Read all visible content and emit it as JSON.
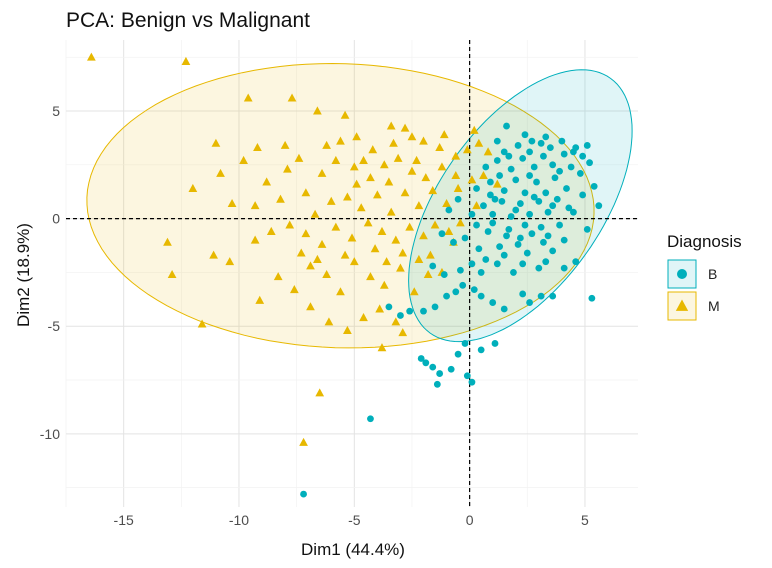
{
  "chart_data": {
    "type": "scatter",
    "title": "PCA: Benign vs Malignant",
    "xlabel": "Dim1 (44.4%)",
    "ylabel": "Dim2 (18.9%)",
    "xlim": [
      -17.5,
      7.3
    ],
    "ylim": [
      -13.4,
      8.3
    ],
    "xticks": [
      -15,
      -10,
      -5,
      0,
      5
    ],
    "yticks": [
      5,
      0,
      -5,
      -10
    ],
    "grid": true,
    "reference_lines": {
      "x": 0,
      "y": 0,
      "style": "dashed"
    },
    "legend": {
      "title": "Diagnosis",
      "placement": "right"
    },
    "series": [
      {
        "name": "B",
        "marker": "circle",
        "color": "#00AFBB",
        "ellipse": {
          "center": [
            2.2,
            0.6
          ],
          "semi_major": 7.1,
          "semi_minor": 3.6,
          "angle_deg": 58
        },
        "points": [
          [
            -7.2,
            -12.8
          ],
          [
            -4.3,
            -9.3
          ],
          [
            -1.4,
            -7.7
          ],
          [
            -1.3,
            -7.2
          ],
          [
            -1.9,
            -6.7
          ],
          [
            -1.6,
            -6.9
          ],
          [
            -2.1,
            -6.5
          ],
          [
            -0.1,
            -7.3
          ],
          [
            0.1,
            -7.6
          ],
          [
            -0.8,
            -7.0
          ],
          [
            -0.5,
            -6.3
          ],
          [
            -0.2,
            -5.8
          ],
          [
            0.5,
            -6.1
          ],
          [
            1.1,
            -5.8
          ],
          [
            -3.5,
            -4.1
          ],
          [
            -3.0,
            -4.5
          ],
          [
            -2.6,
            -4.3
          ],
          [
            -2.0,
            -4.3
          ],
          [
            -1.5,
            -4.1
          ],
          [
            -1.0,
            -3.6
          ],
          [
            -0.6,
            -3.4
          ],
          [
            -0.3,
            -3.1
          ],
          [
            0.2,
            -3.3
          ],
          [
            0.5,
            -3.6
          ],
          [
            1.0,
            -3.9
          ],
          [
            1.5,
            -4.2
          ],
          [
            2.3,
            -3.5
          ],
          [
            2.6,
            -3.9
          ],
          [
            3.1,
            -3.6
          ],
          [
            3.6,
            -3.6
          ],
          [
            4.1,
            -2.3
          ],
          [
            4.6,
            -2.0
          ],
          [
            5.3,
            -3.7
          ],
          [
            -1.6,
            -2.2
          ],
          [
            -1.1,
            -2.6
          ],
          [
            -0.4,
            -2.4
          ],
          [
            0.1,
            -2.1
          ],
          [
            0.5,
            -2.5
          ],
          [
            1.2,
            -2.1
          ],
          [
            1.9,
            -2.5
          ],
          [
            2.3,
            -2.1
          ],
          [
            3.0,
            -2.3
          ],
          [
            3.6,
            -1.5
          ],
          [
            4.1,
            -1.0
          ],
          [
            5.1,
            -0.5
          ],
          [
            -1.2,
            -0.7
          ],
          [
            -0.7,
            -1.1
          ],
          [
            -0.2,
            -0.9
          ],
          [
            0.4,
            -1.4
          ],
          [
            0.8,
            -0.6
          ],
          [
            1.3,
            -1.3
          ],
          [
            1.7,
            -0.5
          ],
          [
            2.1,
            -1.2
          ],
          [
            2.7,
            -0.7
          ],
          [
            3.2,
            -1.1
          ],
          [
            3.9,
            -0.3
          ],
          [
            4.5,
            0.3
          ],
          [
            5.6,
            0.6
          ],
          [
            -0.9,
            0.4
          ],
          [
            -0.5,
            0.9
          ],
          [
            0.1,
            0.2
          ],
          [
            0.6,
            0.6
          ],
          [
            1.0,
            0.2
          ],
          [
            1.4,
            0.8
          ],
          [
            1.8,
            0.1
          ],
          [
            2.2,
            0.7
          ],
          [
            2.6,
            0.2
          ],
          [
            3.0,
            0.8
          ],
          [
            3.4,
            0.3
          ],
          [
            3.8,
            0.9
          ],
          [
            4.3,
            0.5
          ],
          [
            4.9,
            1.1
          ],
          [
            5.4,
            1.5
          ],
          [
            0.3,
            1.4
          ],
          [
            0.9,
            1.7
          ],
          [
            1.5,
            1.3
          ],
          [
            2.0,
            1.8
          ],
          [
            2.4,
            1.2
          ],
          [
            2.9,
            1.7
          ],
          [
            3.3,
            1.2
          ],
          [
            3.7,
            1.9
          ],
          [
            4.2,
            1.4
          ],
          [
            4.8,
            2.1
          ],
          [
            5.2,
            2.6
          ],
          [
            0.7,
            2.4
          ],
          [
            1.2,
            2.7
          ],
          [
            1.8,
            2.3
          ],
          [
            2.3,
            2.8
          ],
          [
            2.8,
            2.4
          ],
          [
            3.2,
            2.9
          ],
          [
            3.6,
            2.5
          ],
          [
            4.1,
            3.0
          ],
          [
            4.6,
            3.3
          ],
          [
            5.1,
            3.4
          ],
          [
            1.5,
            3.1
          ],
          [
            2.1,
            3.4
          ],
          [
            2.6,
            3.1
          ],
          [
            3.1,
            3.5
          ],
          [
            3.5,
            3.3
          ],
          [
            4.0,
            3.6
          ],
          [
            4.5,
            3.1
          ],
          [
            4.9,
            2.9
          ],
          [
            1.6,
            4.3
          ],
          [
            1.2,
            3.6
          ],
          [
            2.4,
            3.9
          ],
          [
            3.3,
            3.8
          ],
          [
            1.0,
            -0.2
          ],
          [
            1.6,
            -0.8
          ],
          [
            2.4,
            -0.3
          ],
          [
            3.1,
            -0.4
          ],
          [
            0.7,
            -1.9
          ],
          [
            1.5,
            -1.7
          ],
          [
            2.5,
            -1.6
          ],
          [
            3.3,
            -2.0
          ],
          [
            0.3,
            -0.3
          ],
          [
            2.0,
            0.4
          ],
          [
            2.8,
            1.0
          ],
          [
            3.6,
            0.6
          ],
          [
            1.3,
            2.0
          ],
          [
            2.6,
            2.0
          ],
          [
            3.9,
            2.2
          ],
          [
            4.4,
            2.4
          ],
          [
            0.9,
            1.1
          ],
          [
            1.7,
            2.9
          ],
          [
            3.4,
            -0.8
          ],
          [
            2.2,
            -0.9
          ],
          [
            1.1,
            0.9
          ],
          [
            2.7,
            3.6
          ]
        ]
      },
      {
        "name": "M",
        "marker": "triangle",
        "color": "#E7B800",
        "ellipse": {
          "center": [
            -5.6,
            0.6
          ],
          "semi_major": 11.0,
          "semi_minor": 6.6,
          "angle_deg": -2
        },
        "points": [
          [
            -16.4,
            7.5
          ],
          [
            -12.3,
            7.3
          ],
          [
            -9.6,
            5.6
          ],
          [
            -7.7,
            5.6
          ],
          [
            -11.0,
            3.5
          ],
          [
            -9.2,
            3.3
          ],
          [
            -6.6,
            5.0
          ],
          [
            -5.4,
            4.8
          ],
          [
            -3.4,
            4.3
          ],
          [
            -2.8,
            4.2
          ],
          [
            -2.5,
            3.8
          ],
          [
            -4.9,
            3.8
          ],
          [
            -6.2,
            3.4
          ],
          [
            -7.9,
            2.3
          ],
          [
            -10.8,
            2.1
          ],
          [
            -12.0,
            1.4
          ],
          [
            -10.3,
            0.7
          ],
          [
            -9.3,
            0.6
          ],
          [
            -8.2,
            0.9
          ],
          [
            -7.1,
            1.2
          ],
          [
            -6.4,
            2.1
          ],
          [
            -5.8,
            2.7
          ],
          [
            -5.0,
            2.4
          ],
          [
            -4.3,
            1.9
          ],
          [
            -3.7,
            2.5
          ],
          [
            -3.1,
            2.8
          ],
          [
            -2.5,
            2.2
          ],
          [
            -1.9,
            1.9
          ],
          [
            -1.2,
            2.4
          ],
          [
            -0.6,
            2.9
          ],
          [
            -0.1,
            3.2
          ],
          [
            0.4,
            3.5
          ],
          [
            0.8,
            3.1
          ],
          [
            -13.1,
            -1.1
          ],
          [
            -12.9,
            -2.6
          ],
          [
            -11.6,
            -4.9
          ],
          [
            -11.1,
            -1.7
          ],
          [
            -10.4,
            -2.0
          ],
          [
            -9.3,
            -1.0
          ],
          [
            -8.6,
            -0.6
          ],
          [
            -7.8,
            -0.3
          ],
          [
            -7.1,
            -0.7
          ],
          [
            -6.4,
            -1.2
          ],
          [
            -5.8,
            -0.4
          ],
          [
            -5.1,
            -0.9
          ],
          [
            -4.4,
            -0.2
          ],
          [
            -3.8,
            -0.6
          ],
          [
            -3.2,
            -1.0
          ],
          [
            -2.6,
            -0.4
          ],
          [
            -2.0,
            -0.8
          ],
          [
            -1.5,
            -0.3
          ],
          [
            -0.9,
            -0.6
          ],
          [
            -0.4,
            -0.2
          ],
          [
            -9.1,
            -3.8
          ],
          [
            -8.3,
            -2.7
          ],
          [
            -7.6,
            -3.3
          ],
          [
            -6.9,
            -2.2
          ],
          [
            -6.2,
            -2.6
          ],
          [
            -5.6,
            -3.4
          ],
          [
            -5.0,
            -2.0
          ],
          [
            -4.3,
            -2.7
          ],
          [
            -3.7,
            -3.1
          ],
          [
            -3.0,
            -2.3
          ],
          [
            -2.4,
            -3.4
          ],
          [
            -1.8,
            -2.6
          ],
          [
            -6.1,
            -4.8
          ],
          [
            -5.3,
            -5.2
          ],
          [
            -4.6,
            -4.6
          ],
          [
            -3.9,
            -4.2
          ],
          [
            -3.2,
            -4.8
          ],
          [
            -6.9,
            -4.1
          ],
          [
            -6.5,
            -8.1
          ],
          [
            -7.2,
            -10.4
          ],
          [
            -3.8,
            -6.0
          ],
          [
            -2.9,
            -5.3
          ],
          [
            -8.8,
            1.7
          ],
          [
            -7.4,
            2.8
          ],
          [
            -6.7,
            0.2
          ],
          [
            -5.3,
            1.0
          ],
          [
            -4.7,
            0.5
          ],
          [
            -4.0,
            1.1
          ],
          [
            -3.4,
            0.3
          ],
          [
            -2.8,
            1.2
          ],
          [
            -2.2,
            0.6
          ],
          [
            -1.6,
            1.3
          ],
          [
            -1.0,
            0.7
          ],
          [
            -0.5,
            1.4
          ],
          [
            0.1,
            1.8
          ],
          [
            0.6,
            2.0
          ],
          [
            1.2,
            1.6
          ],
          [
            -5.6,
            3.6
          ],
          [
            -4.2,
            3.2
          ],
          [
            -2.0,
            3.6
          ],
          [
            -1.3,
            3.3
          ],
          [
            -0.6,
            2.0
          ],
          [
            -3.5,
            1.7
          ],
          [
            -4.9,
            1.6
          ],
          [
            -6.0,
            0.8
          ],
          [
            -7.3,
            -1.6
          ],
          [
            -5.4,
            -1.7
          ],
          [
            -4.1,
            -1.4
          ],
          [
            -2.9,
            -1.6
          ],
          [
            -1.7,
            -1.7
          ],
          [
            -0.7,
            -1.1
          ],
          [
            0.3,
            0.6
          ],
          [
            -8.0,
            3.4
          ],
          [
            -9.8,
            2.7
          ],
          [
            -3.3,
            3.5
          ],
          [
            -4.6,
            2.7
          ],
          [
            -2.3,
            2.7
          ],
          [
            -1.1,
            3.9
          ],
          [
            0.2,
            4.1
          ],
          [
            -6.6,
            -1.9
          ],
          [
            -3.6,
            -2.0
          ],
          [
            -2.2,
            -1.9
          ],
          [
            -1.2,
            -2.5
          ]
        ]
      }
    ]
  }
}
